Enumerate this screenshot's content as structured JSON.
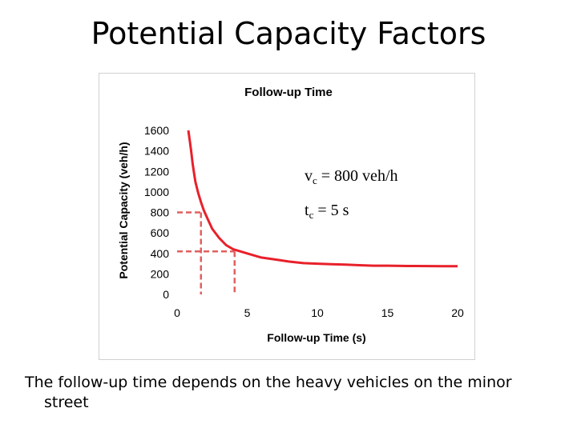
{
  "slide": {
    "title": "Potential Capacity Factors",
    "caption": "The follow-up time depends on the heavy vehicles on the minor street"
  },
  "annotations": {
    "vc_var": "v",
    "vc_sub": "c",
    "vc_rest": " = 800 veh/h",
    "tc_var": "t",
    "tc_sub": "c",
    "tc_rest": " = 5 s"
  },
  "chart_data": {
    "type": "line",
    "title": "Follow-up Time",
    "xlabel": "Follow-up Time (s)",
    "ylabel": "Potential Capacity (veh/h)",
    "xlim": [
      0,
      20
    ],
    "ylim": [
      0,
      1600
    ],
    "xticks": [
      0,
      5,
      10,
      15,
      20
    ],
    "yticks": [
      0,
      200,
      400,
      600,
      800,
      1000,
      1200,
      1400,
      1600
    ],
    "grid": false,
    "series": [
      {
        "color": "#e8202a",
        "x": [
          0.8,
          0.9,
          1.0,
          1.1,
          1.2,
          1.3,
          1.5,
          1.7,
          1.9,
          2.2,
          2.5,
          3.0,
          3.5,
          4.0,
          4.5,
          5.0,
          6.0,
          7.0,
          8.0,
          9.0,
          10.0,
          11.0,
          12.0,
          13.0,
          14.0,
          15.0,
          16.0,
          17.0,
          18.0,
          19.0,
          20.0
        ],
        "y": [
          1600,
          1500,
          1400,
          1280,
          1190,
          1100,
          990,
          900,
          820,
          730,
          640,
          550,
          480,
          440,
          420,
          400,
          360,
          340,
          320,
          305,
          300,
          295,
          290,
          285,
          280,
          280,
          278,
          277,
          276,
          275,
          275
        ]
      }
    ],
    "reference_lines": [
      {
        "color": "#e06060",
        "style": "dashed",
        "x": 1.7,
        "y": 800
      },
      {
        "color": "#e06060",
        "style": "dashed",
        "x": 4.1,
        "y": 420
      }
    ]
  },
  "colors": {
    "curve": "#e8202a",
    "reference": "#e06060",
    "frame": "#d0d0d0"
  }
}
